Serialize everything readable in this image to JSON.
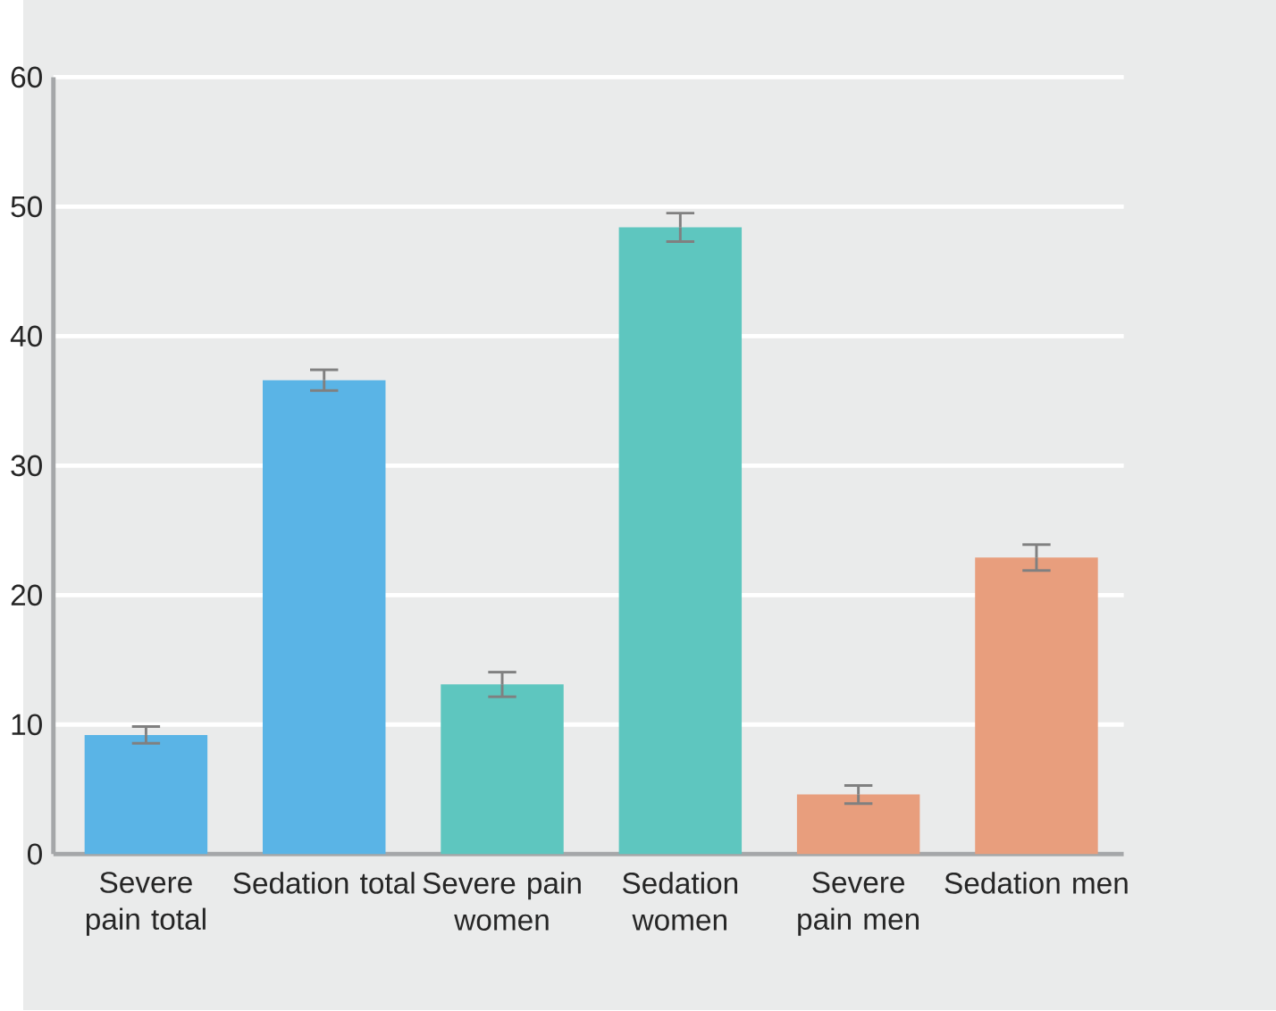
{
  "chart_data": {
    "type": "bar",
    "categories": [
      "Severe pain total",
      "Sedation total",
      "Severe pain women",
      "Sedation women",
      "Severe pain men",
      "Sedation men"
    ],
    "values": [
      9.2,
      36.6,
      13.1,
      48.4,
      4.6,
      22.9
    ],
    "errors": [
      0.65,
      0.8,
      0.95,
      1.1,
      0.7,
      1.0
    ],
    "colors": [
      "#5ab4e6",
      "#5ab4e6",
      "#5ec6bf",
      "#5ec6bf",
      "#e89e7d",
      "#e89e7d"
    ],
    "ylim": [
      0,
      60
    ],
    "yticks": [
      0,
      10,
      20,
      30,
      40,
      50,
      60
    ],
    "grid": "y"
  }
}
